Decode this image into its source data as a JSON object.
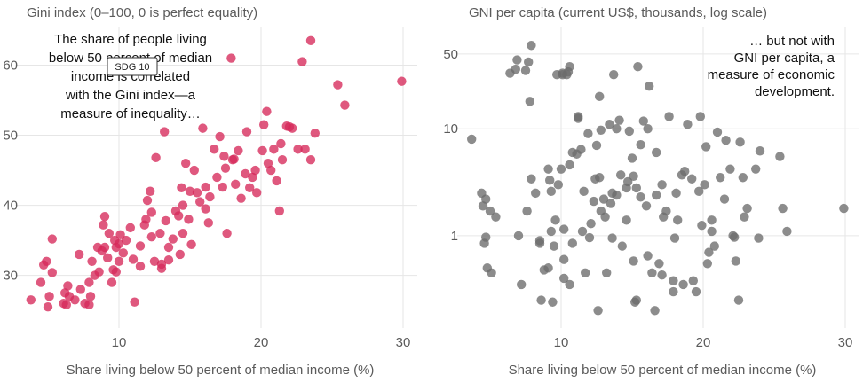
{
  "chart_data": [
    {
      "type": "scatter",
      "title": "Gini index (0–100, 0 is perfect equality)",
      "xlabel": "Share living below 50 percent of median income (%)",
      "ylabel": "",
      "xlim": [
        3,
        31
      ],
      "ylim": [
        23.5,
        65.5
      ],
      "xticks": [
        10,
        20,
        30
      ],
      "yticks": [
        30,
        40,
        50,
        60
      ],
      "color": "#d6295a",
      "annotation": [
        "The share of people living",
        "below 50 percent of median",
        "income is correlated",
        "with the Gini index—a",
        "measure of inequality…"
      ],
      "badge": "SDG 10",
      "points": [
        [
          3.8,
          26.5
        ],
        [
          4.5,
          29
        ],
        [
          4.7,
          31.5
        ],
        [
          4.9,
          32
        ],
        [
          5.1,
          27
        ],
        [
          5.3,
          35.2
        ],
        [
          5.3,
          30.4
        ],
        [
          5.0,
          25.5
        ],
        [
          6.1,
          26
        ],
        [
          6.2,
          27.5
        ],
        [
          6.3,
          25.8
        ],
        [
          6.4,
          28.5
        ],
        [
          6.5,
          27
        ],
        [
          6.9,
          26.5
        ],
        [
          7.2,
          33
        ],
        [
          7.3,
          28
        ],
        [
          7.6,
          26
        ],
        [
          7.9,
          29
        ],
        [
          7.9,
          25.8
        ],
        [
          8.0,
          27
        ],
        [
          8.1,
          32
        ],
        [
          8.3,
          30
        ],
        [
          8.5,
          34
        ],
        [
          8.6,
          30.5
        ],
        [
          8.8,
          33.5
        ],
        [
          8.9,
          37.2
        ],
        [
          9.0,
          34
        ],
        [
          9.0,
          38.4
        ],
        [
          9.2,
          32.5
        ],
        [
          9.3,
          36
        ],
        [
          9.5,
          29
        ],
        [
          9.6,
          30.8
        ],
        [
          9.7,
          35
        ],
        [
          9.8,
          34
        ],
        [
          9.8,
          30.5
        ],
        [
          10.0,
          32
        ],
        [
          10.0,
          34.5
        ],
        [
          10.1,
          35.8
        ],
        [
          10.3,
          33.2
        ],
        [
          10.5,
          35
        ],
        [
          10.8,
          36.8
        ],
        [
          11.0,
          32.3
        ],
        [
          11.1,
          26.2
        ],
        [
          11.5,
          34.2
        ],
        [
          11.5,
          31.3
        ],
        [
          11.9,
          38
        ],
        [
          12.0,
          40.7
        ],
        [
          12.2,
          42
        ],
        [
          12.3,
          39
        ],
        [
          12.5,
          32
        ],
        [
          12.6,
          46.8
        ],
        [
          12.9,
          36
        ],
        [
          13.0,
          31
        ],
        [
          13.0,
          31.6
        ],
        [
          13.2,
          50.5
        ],
        [
          13.3,
          37.8
        ],
        [
          13.5,
          34
        ],
        [
          13.5,
          32.2
        ],
        [
          13.8,
          35.2
        ],
        [
          14.0,
          39.2
        ],
        [
          14.2,
          38.5
        ],
        [
          14.4,
          42.5
        ],
        [
          14.5,
          40
        ],
        [
          14.5,
          36
        ],
        [
          14.7,
          46
        ],
        [
          14.9,
          38
        ],
        [
          15.0,
          42
        ],
        [
          15.1,
          34.4
        ],
        [
          15.3,
          45
        ],
        [
          15.5,
          41.8
        ],
        [
          15.7,
          40.5
        ],
        [
          15.9,
          51
        ],
        [
          16.1,
          42.6
        ],
        [
          16.1,
          39.5
        ],
        [
          16.3,
          37.5
        ],
        [
          16.7,
          48
        ],
        [
          16.9,
          44
        ],
        [
          17.1,
          49.8
        ],
        [
          17.3,
          42.6
        ],
        [
          17.5,
          45.3
        ],
        [
          17.6,
          36
        ],
        [
          17.9,
          61
        ],
        [
          18.0,
          46.5
        ],
        [
          18.2,
          43
        ],
        [
          18.4,
          47.8
        ],
        [
          18.6,
          41
        ],
        [
          18.9,
          44.5
        ],
        [
          19.0,
          50.5
        ],
        [
          19.2,
          42.5
        ],
        [
          19.4,
          44
        ],
        [
          19.6,
          45
        ],
        [
          19.7,
          41.8
        ],
        [
          20.1,
          47.8
        ],
        [
          20.2,
          51.5
        ],
        [
          20.4,
          53.4
        ],
        [
          20.5,
          46
        ],
        [
          20.7,
          45
        ],
        [
          21.1,
          43.5
        ],
        [
          21.3,
          39.2
        ],
        [
          21.4,
          48.8
        ],
        [
          21.5,
          46.5
        ],
        [
          21.8,
          51.3
        ],
        [
          22.0,
          51.2
        ],
        [
          22.2,
          51
        ],
        [
          22.6,
          48
        ],
        [
          22.9,
          60.5
        ],
        [
          23.1,
          48
        ],
        [
          23.5,
          63.5
        ],
        [
          23.5,
          46.5
        ],
        [
          23.8,
          50.3
        ],
        [
          25.4,
          57.2
        ],
        [
          25.9,
          54.3
        ],
        [
          29.9,
          57.7
        ],
        [
          11.8,
          37.2
        ],
        [
          12.3,
          35.5
        ],
        [
          14.3,
          33
        ],
        [
          16.4,
          41.2
        ],
        [
          18.1,
          46.6
        ],
        [
          20.9,
          48
        ],
        [
          17.4,
          47
        ]
      ]
    },
    {
      "type": "scatter",
      "title": "GNI per capita (current US$, thousands, log scale)",
      "xlabel": "Share living below 50 percent of median income (%)",
      "ylabel": "",
      "log_y": true,
      "xlim": [
        3,
        31
      ],
      "ylim": [
        0.16,
        90
      ],
      "xticks": [
        10,
        20,
        30
      ],
      "yticks": [
        1,
        10,
        50
      ],
      "ytick_labels": [
        "1",
        "10",
        "50"
      ],
      "color": "#6b6b6b",
      "annotation": [
        "… but not with",
        "GNI per capita, a",
        "measure of economic",
        "development."
      ],
      "points": [
        [
          3.7,
          8
        ],
        [
          4.4,
          2.5
        ],
        [
          4.5,
          1.9
        ],
        [
          4.6,
          0.85
        ],
        [
          4.7,
          0.97
        ],
        [
          4.7,
          2.2
        ],
        [
          4.8,
          0.5
        ],
        [
          5.0,
          1.7
        ],
        [
          5.1,
          0.45
        ],
        [
          5.4,
          1.5
        ],
        [
          6.4,
          33
        ],
        [
          6.8,
          36
        ],
        [
          6.9,
          44
        ],
        [
          7.0,
          1
        ],
        [
          7.2,
          0.35
        ],
        [
          7.5,
          35
        ],
        [
          7.6,
          1.7
        ],
        [
          7.7,
          42
        ],
        [
          7.8,
          18
        ],
        [
          7.9,
          3.4
        ],
        [
          7.9,
          60
        ],
        [
          8.2,
          2.5
        ],
        [
          8.5,
          0.85
        ],
        [
          8.5,
          0.9
        ],
        [
          8.6,
          0.25
        ],
        [
          8.8,
          0.48
        ],
        [
          9.1,
          0.5
        ],
        [
          9.2,
          3.3
        ],
        [
          9.3,
          1.1
        ],
        [
          9.3,
          2.6
        ],
        [
          9.4,
          0.24
        ],
        [
          9.5,
          0.8
        ],
        [
          9.6,
          1.4
        ],
        [
          9.7,
          32
        ],
        [
          9.8,
          3
        ],
        [
          10.0,
          4.2
        ],
        [
          10.1,
          32
        ],
        [
          10.1,
          33
        ],
        [
          10.2,
          0.6
        ],
        [
          10.2,
          0.4
        ],
        [
          10.2,
          1.15
        ],
        [
          10.4,
          32
        ],
        [
          10.5,
          34
        ],
        [
          10.6,
          38
        ],
        [
          10.6,
          4.6
        ],
        [
          10.8,
          6
        ],
        [
          10.8,
          0.85
        ],
        [
          11.1,
          5.8
        ],
        [
          11.2,
          13
        ],
        [
          11.2,
          12.5
        ],
        [
          11.5,
          1.1
        ],
        [
          11.7,
          0.45
        ],
        [
          11.9,
          9
        ],
        [
          12.0,
          0.96
        ],
        [
          12.3,
          2.1
        ],
        [
          12.5,
          7
        ],
        [
          12.6,
          0.2
        ],
        [
          12.7,
          20
        ],
        [
          12.7,
          3.5
        ],
        [
          12.8,
          1.7
        ],
        [
          12.8,
          9.7
        ],
        [
          13.1,
          1.5
        ],
        [
          13.2,
          0.45
        ],
        [
          13.4,
          11
        ],
        [
          13.5,
          2
        ],
        [
          13.6,
          0.95
        ],
        [
          13.7,
          32
        ],
        [
          13.9,
          10
        ],
        [
          13.9,
          2.4
        ],
        [
          14.2,
          3.7
        ],
        [
          14.3,
          0.8
        ],
        [
          14.6,
          2.8
        ],
        [
          14.7,
          3.2
        ],
        [
          14.8,
          9.5
        ],
        [
          15.0,
          5.3
        ],
        [
          15.1,
          3.6
        ],
        [
          15.2,
          0.24
        ],
        [
          15.3,
          0.25
        ],
        [
          15.3,
          2.8
        ],
        [
          15.4,
          38
        ],
        [
          15.6,
          7.1
        ],
        [
          15.8,
          11.8
        ],
        [
          16.0,
          1.9
        ],
        [
          16.1,
          10
        ],
        [
          16.2,
          25
        ],
        [
          16.4,
          0.45
        ],
        [
          16.6,
          0.2
        ],
        [
          16.7,
          2.4
        ],
        [
          16.9,
          0.55
        ],
        [
          17.1,
          3
        ],
        [
          17.2,
          1.5
        ],
        [
          17.4,
          1.7
        ],
        [
          17.6,
          13
        ],
        [
          17.9,
          0.3
        ],
        [
          18.0,
          0.95
        ],
        [
          18.1,
          2.5
        ],
        [
          18.2,
          1.4
        ],
        [
          18.5,
          3.7
        ],
        [
          18.6,
          0.35
        ],
        [
          18.9,
          11
        ],
        [
          19.2,
          3.4
        ],
        [
          19.5,
          0.3
        ],
        [
          19.7,
          2.6
        ],
        [
          19.9,
          1.25
        ],
        [
          20.1,
          3
        ],
        [
          20.2,
          6.8
        ],
        [
          20.3,
          0.55
        ],
        [
          20.4,
          0.7
        ],
        [
          20.6,
          1.4
        ],
        [
          20.8,
          0.8
        ],
        [
          21.0,
          9.3
        ],
        [
          21.2,
          3.5
        ],
        [
          21.5,
          2.2
        ],
        [
          21.9,
          4.2
        ],
        [
          22.1,
          1
        ],
        [
          22.3,
          0.58
        ],
        [
          22.5,
          0.25
        ],
        [
          22.6,
          7.5
        ],
        [
          22.8,
          3.5
        ],
        [
          22.9,
          1.5
        ],
        [
          23.1,
          1.8
        ],
        [
          23.7,
          4.2
        ],
        [
          24.0,
          6.2
        ],
        [
          25.4,
          5.5
        ],
        [
          25.6,
          1.8
        ],
        [
          25.9,
          1.1
        ],
        [
          29.9,
          1.8
        ],
        [
          13.0,
          2.2
        ],
        [
          14.1,
          12
        ],
        [
          16.7,
          6
        ],
        [
          19.8,
          13
        ],
        [
          21.6,
          7.8
        ],
        [
          12.1,
          1.3
        ],
        [
          11.6,
          2.6
        ],
        [
          18.7,
          4
        ],
        [
          15.1,
          0.58
        ],
        [
          9.1,
          4.2
        ],
        [
          17.9,
          0.38
        ],
        [
          23.9,
          0.95
        ],
        [
          14.6,
          1.4
        ],
        [
          22.2,
          0.97
        ],
        [
          13.6,
          2.5
        ],
        [
          10.6,
          0.35
        ],
        [
          11.4,
          6.4
        ],
        [
          19.3,
          0.38
        ],
        [
          16.1,
          0.65
        ],
        [
          17.1,
          0.43
        ],
        [
          20.6,
          1.1
        ],
        [
          12.4,
          3.4
        ],
        [
          15.6,
          2.3
        ]
      ]
    }
  ]
}
